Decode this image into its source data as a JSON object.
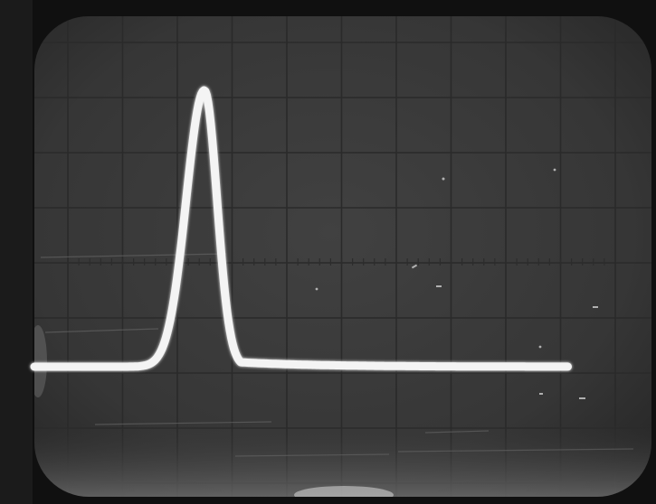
{
  "scene": {
    "subject": "oscilloscope-screen-photo",
    "graticule": {
      "major_columns": 10,
      "major_rows": 8
    },
    "trace": {
      "shape": "single-pulse",
      "color": "#f4f4f4",
      "peak_division_x": 3.0,
      "peak_level": 1.0,
      "baseline_level": 0.0
    },
    "colors": {
      "bezel": "#121212",
      "screen": "#3b3b3b",
      "grid": "#2a2a2a",
      "glare": "#d8d8d8"
    }
  }
}
